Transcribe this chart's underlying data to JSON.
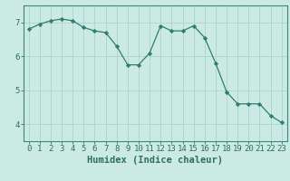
{
  "x": [
    0,
    1,
    2,
    3,
    4,
    5,
    6,
    7,
    8,
    9,
    10,
    11,
    12,
    13,
    14,
    15,
    16,
    17,
    18,
    19,
    20,
    21,
    22,
    23
  ],
  "y": [
    6.8,
    6.95,
    7.05,
    7.1,
    7.05,
    6.85,
    6.75,
    6.7,
    6.3,
    5.75,
    5.75,
    6.1,
    6.9,
    6.75,
    6.75,
    6.9,
    6.55,
    5.8,
    4.95,
    4.6,
    4.6,
    4.6,
    4.25,
    4.05
  ],
  "line_color": "#2e7d6e",
  "marker": "D",
  "marker_size": 2.2,
  "bg_color": "#cceae4",
  "grid_color": "#aad4cc",
  "axis_color": "#3a8a7a",
  "tick_color": "#2e6e60",
  "xlabel": "Humidex (Indice chaleur)",
  "xlabel_fontsize": 7.5,
  "yticks": [
    4,
    5,
    6,
    7
  ],
  "xticks": [
    0,
    1,
    2,
    3,
    4,
    5,
    6,
    7,
    8,
    9,
    10,
    11,
    12,
    13,
    14,
    15,
    16,
    17,
    18,
    19,
    20,
    21,
    22,
    23
  ],
  "ylim": [
    3.5,
    7.5
  ],
  "xlim": [
    -0.5,
    23.5
  ],
  "tick_fontsize": 6.5
}
